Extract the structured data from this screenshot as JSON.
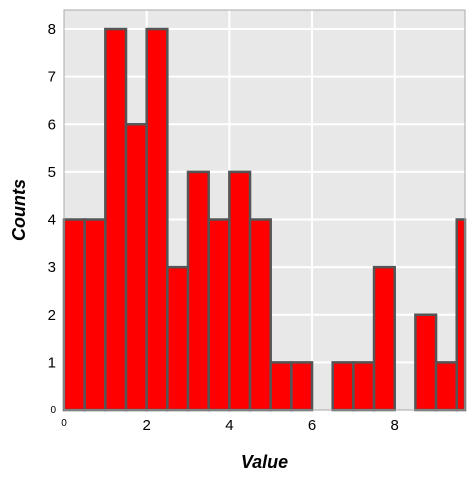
{
  "chart_data": {
    "type": "bar",
    "title": "",
    "xlabel": "Value",
    "ylabel": "Counts",
    "bin_width": 0.5,
    "bin_edges_start": 0,
    "values": [
      4,
      4,
      8,
      6,
      8,
      3,
      5,
      4,
      5,
      4,
      1,
      1,
      0,
      1,
      1,
      3,
      0,
      2,
      1,
      4
    ],
    "xlim": [
      0,
      9.7
    ],
    "ylim": [
      0,
      8.4
    ],
    "xticks": [
      0,
      2,
      4,
      6,
      8
    ],
    "xtick_labels": [
      "0",
      "2",
      "4",
      "6",
      "8"
    ],
    "yticks": [
      0,
      1,
      2,
      3,
      4,
      5,
      6,
      7,
      8
    ],
    "ytick_labels": [
      "0",
      "1",
      "2",
      "3",
      "4",
      "5",
      "6",
      "7",
      "8"
    ],
    "grid": true,
    "bar_color": "#ff0000",
    "bar_edge_color": "#555555",
    "plot_background": "#e8e8e8",
    "grid_color": "#ffffff",
    "frame_color": "#aaaaaa"
  }
}
